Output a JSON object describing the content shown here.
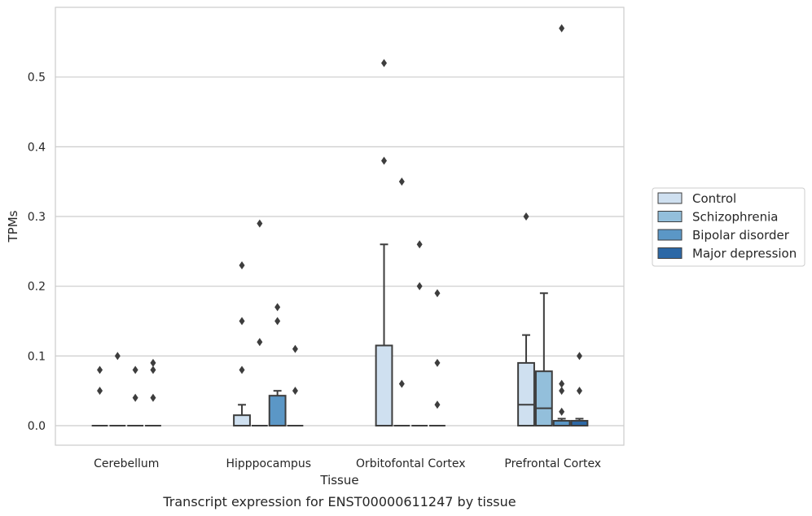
{
  "chart_data": {
    "type": "box",
    "xlabel": "Tissue",
    "ylabel": "TPMs",
    "caption": "Transcript expression for ENST00000611247 by tissue",
    "categories": [
      "Cerebellum",
      "Hipppocampus",
      "Orbitofontal Cortex",
      "Prefrontal Cortex"
    ],
    "ylim": [
      -0.028,
      0.6
    ],
    "yticks": [
      0.0,
      0.1,
      0.2,
      0.3,
      0.4,
      0.5
    ],
    "ytick_labels": [
      "0.0",
      "0.1",
      "0.2",
      "0.3",
      "0.4",
      "0.5"
    ],
    "grid": "horizontal",
    "legend_position": "right",
    "series": [
      {
        "name": "Control",
        "color": "#cfe0f0",
        "boxes": [
          {
            "q1": 0,
            "median": 0,
            "q3": 0,
            "whisker_low": 0,
            "whisker_high": 0,
            "outliers": [
              0.05,
              0.08
            ]
          },
          {
            "q1": 0,
            "median": 0,
            "q3": 0.015,
            "whisker_low": 0,
            "whisker_high": 0.03,
            "outliers": [
              0.08,
              0.15,
              0.23
            ]
          },
          {
            "q1": 0,
            "median": 0,
            "q3": 0.115,
            "whisker_low": 0,
            "whisker_high": 0.26,
            "outliers": [
              0.38,
              0.52
            ]
          },
          {
            "q1": 0,
            "median": 0.03,
            "q3": 0.09,
            "whisker_low": 0,
            "whisker_high": 0.13,
            "outliers": [
              0.3
            ]
          }
        ]
      },
      {
        "name": "Schizophrenia",
        "color": "#93bfdb",
        "boxes": [
          {
            "q1": 0,
            "median": 0,
            "q3": 0,
            "whisker_low": 0,
            "whisker_high": 0,
            "outliers": [
              0.1
            ]
          },
          {
            "q1": 0,
            "median": 0,
            "q3": 0,
            "whisker_low": 0,
            "whisker_high": 0,
            "outliers": [
              0.12,
              0.29
            ]
          },
          {
            "q1": 0,
            "median": 0,
            "q3": 0,
            "whisker_low": 0,
            "whisker_high": 0,
            "outliers": [
              0.06,
              0.35
            ]
          },
          {
            "q1": 0,
            "median": 0.025,
            "q3": 0.078,
            "whisker_low": 0,
            "whisker_high": 0.19,
            "outliers": []
          }
        ]
      },
      {
        "name": "Bipolar disorder",
        "color": "#5b97c6",
        "boxes": [
          {
            "q1": 0,
            "median": 0,
            "q3": 0,
            "whisker_low": 0,
            "whisker_high": 0,
            "outliers": [
              0.04,
              0.08
            ]
          },
          {
            "q1": 0,
            "median": 0,
            "q3": 0.043,
            "whisker_low": 0,
            "whisker_high": 0.05,
            "outliers": [
              0.15,
              0.17
            ]
          },
          {
            "q1": 0,
            "median": 0,
            "q3": 0,
            "whisker_low": 0,
            "whisker_high": 0,
            "outliers": [
              0.2,
              0.26
            ]
          },
          {
            "q1": 0,
            "median": 0,
            "q3": 0.007,
            "whisker_low": 0,
            "whisker_high": 0.01,
            "outliers": [
              0.02,
              0.05,
              0.06,
              0.57
            ]
          }
        ]
      },
      {
        "name": "Major depression",
        "color": "#2c68a6",
        "boxes": [
          {
            "q1": 0,
            "median": 0,
            "q3": 0,
            "whisker_low": 0,
            "whisker_high": 0,
            "outliers": [
              0.04,
              0.08,
              0.09
            ]
          },
          {
            "q1": 0,
            "median": 0,
            "q3": 0,
            "whisker_low": 0,
            "whisker_high": 0,
            "outliers": [
              0.05,
              0.11
            ]
          },
          {
            "q1": 0,
            "median": 0,
            "q3": 0,
            "whisker_low": 0,
            "whisker_high": 0,
            "outliers": [
              0.03,
              0.09,
              0.19
            ]
          },
          {
            "q1": 0,
            "median": 0,
            "q3": 0.007,
            "whisker_low": 0,
            "whisker_high": 0.01,
            "outliers": [
              0.05,
              0.1
            ]
          }
        ]
      }
    ]
  },
  "colors": {
    "edge": "#3d3d3d",
    "grid": "#cccccc",
    "frame": "#cccccc"
  }
}
